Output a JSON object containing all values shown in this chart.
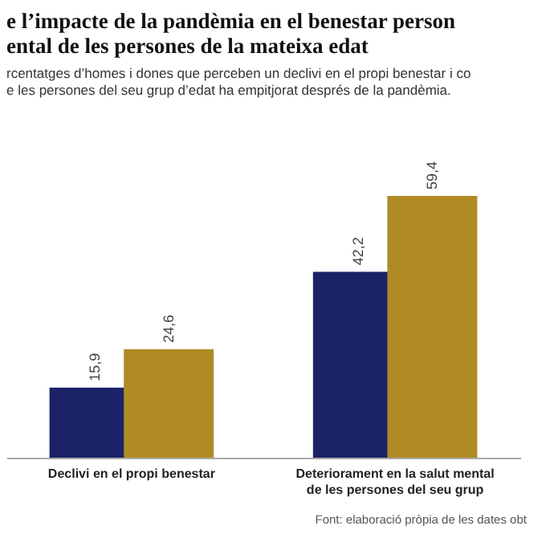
{
  "chart_data": {
    "type": "bar",
    "title": [
      "e l’impacte de la pandèmia en el benestar person",
      "ental de les persones de la mateixa edat"
    ],
    "subtitle": [
      "rcentatges d’homes i dones que perceben un declivi en el propi benestar i co",
      "e les persones del seu grup d’edat ha empitjorat després de la pandèmia."
    ],
    "categories": [
      "Declivi en el propi benestar",
      "Deteriorament en la salut mental de les persones del seu grup"
    ],
    "series": [
      {
        "color": "#1b2267",
        "values": [
          15.9,
          42.2
        ],
        "value_labels": [
          "15,9",
          "42,2"
        ]
      },
      {
        "color": "#b08a22",
        "values": [
          24.6,
          59.4
        ],
        "value_labels": [
          "24,6",
          "59,4"
        ]
      }
    ],
    "tick_labels": "x",
    "annotations": [
      "Font: elaboració pròpia de les dates obt"
    ]
  }
}
